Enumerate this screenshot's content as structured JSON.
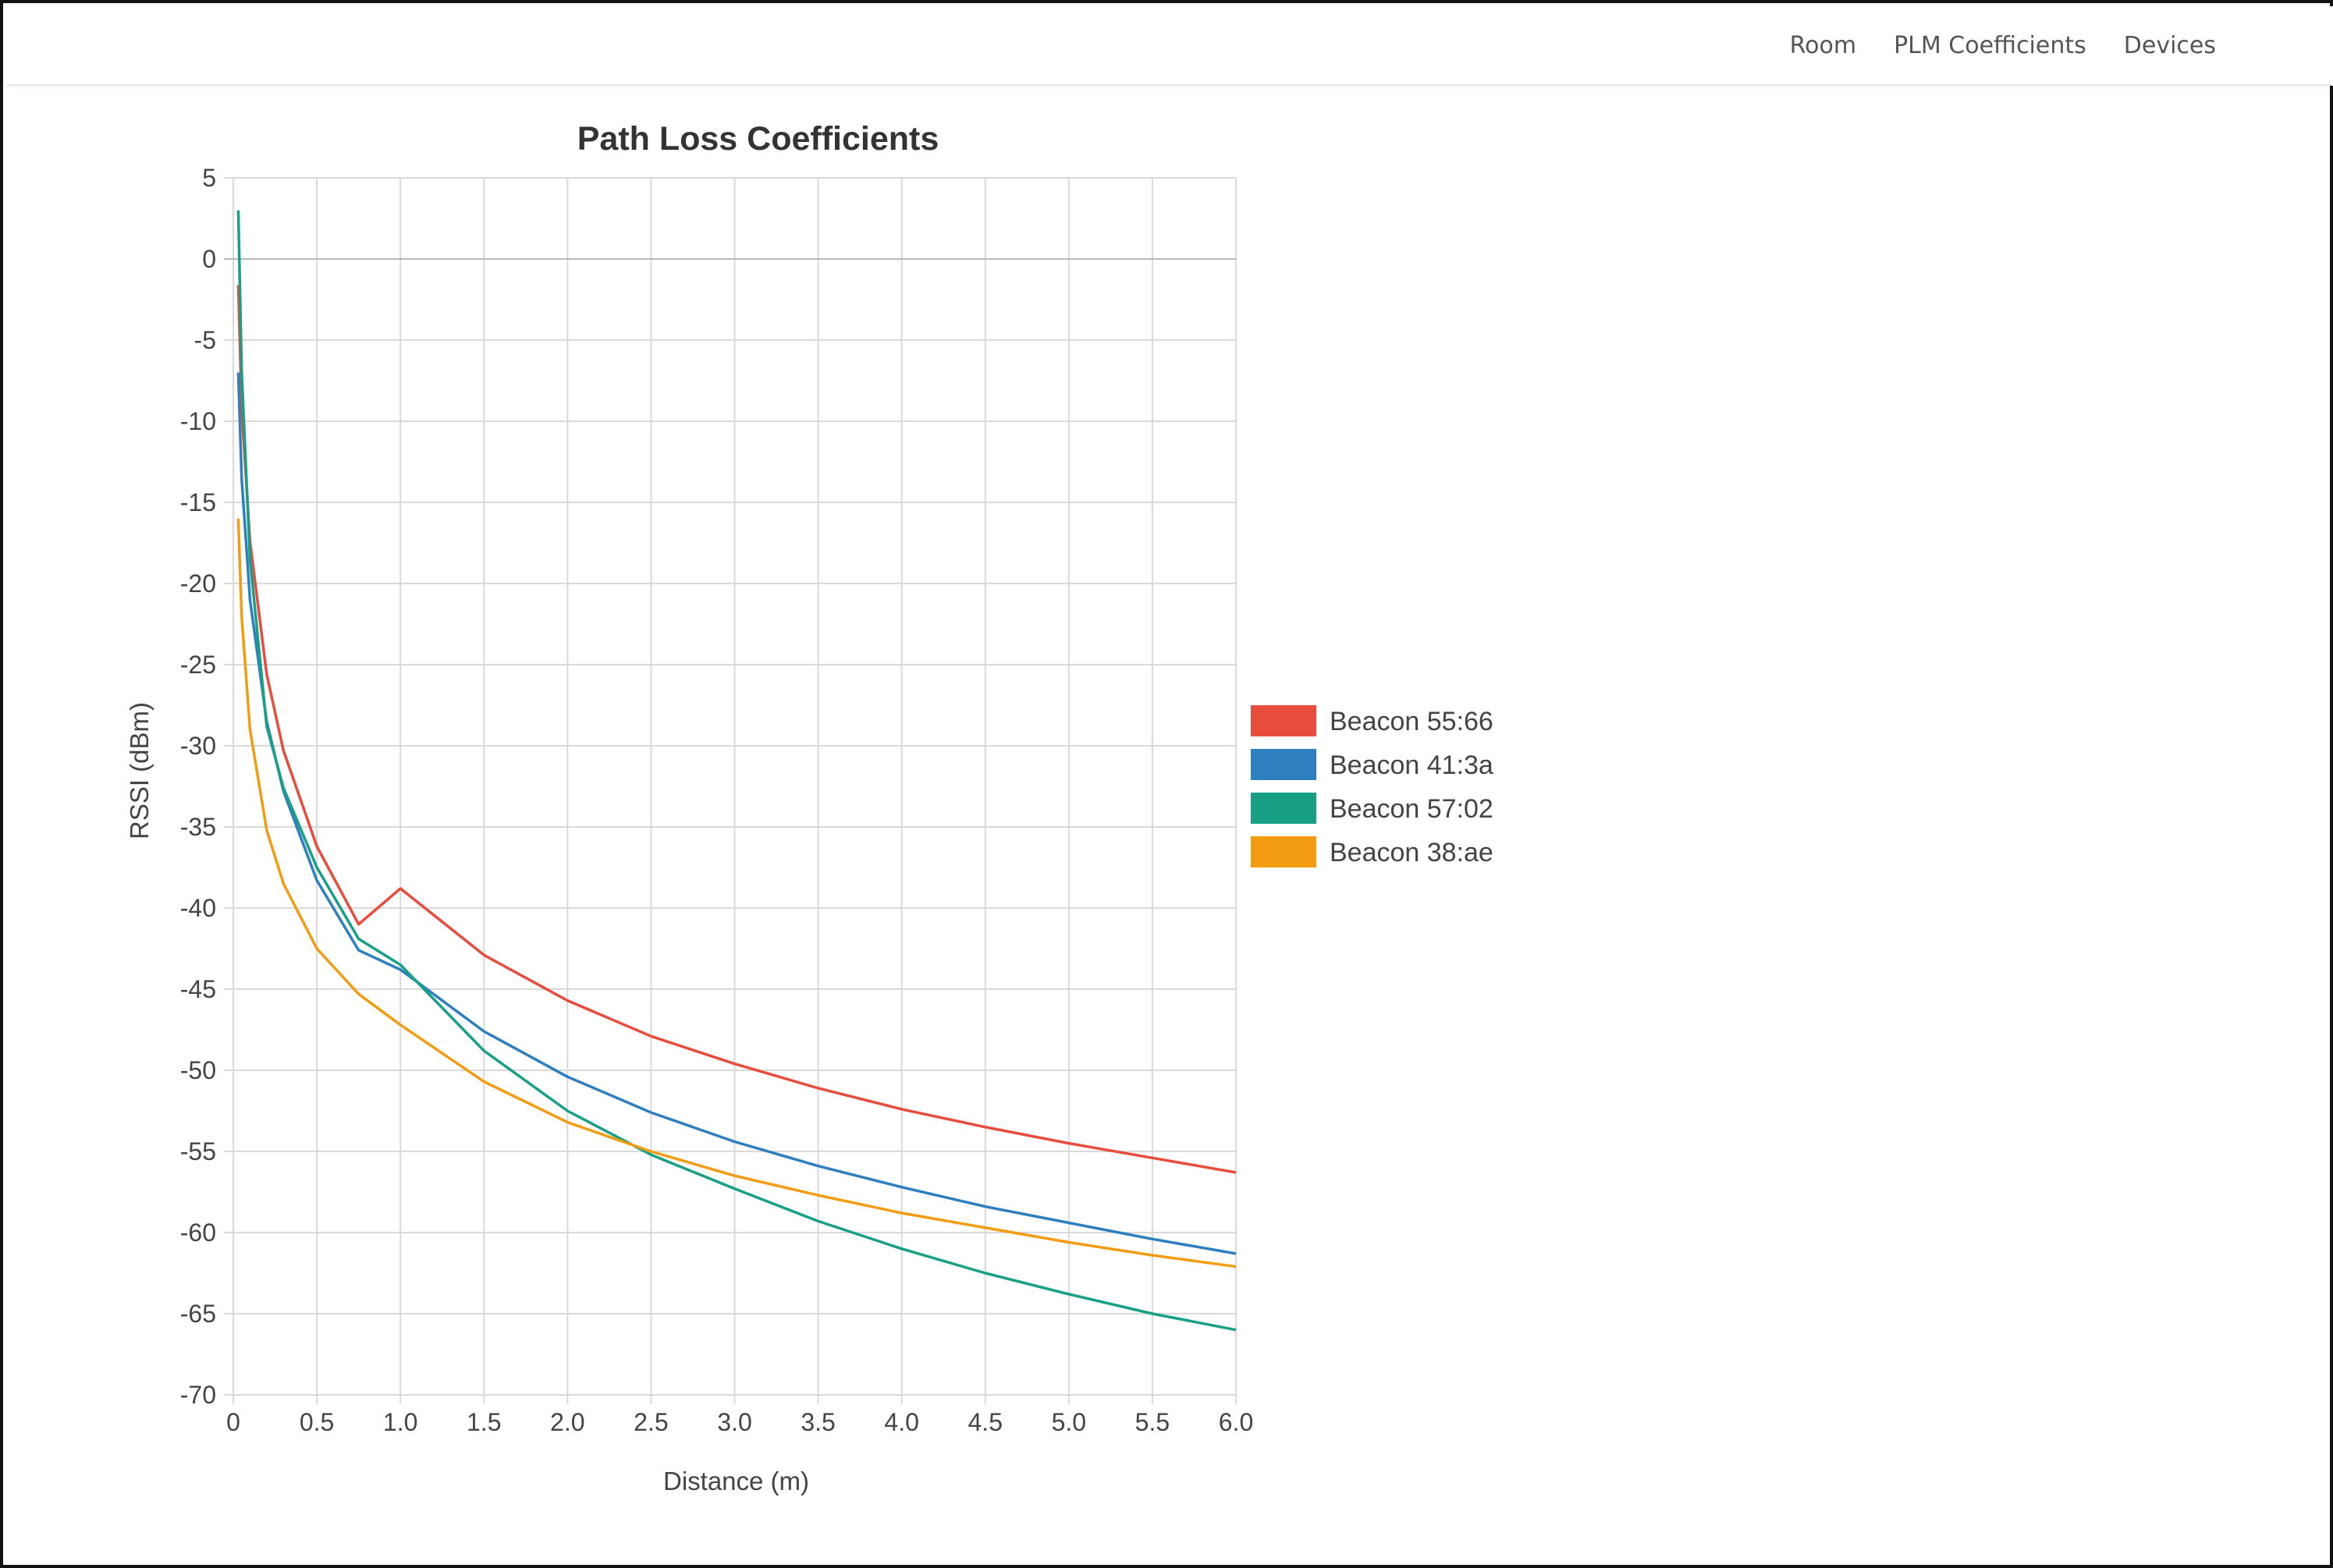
{
  "nav": {
    "items": [
      {
        "label": "Room"
      },
      {
        "label": "PLM Coefficients"
      },
      {
        "label": "Devices"
      }
    ]
  },
  "chart_data": {
    "type": "line",
    "title": "Path Loss Coefficients",
    "xlabel": "Distance (m)",
    "ylabel": "RSSI (dBm)",
    "xlim": [
      0,
      6.0
    ],
    "ylim": [
      -70,
      5
    ],
    "xticks": [
      0,
      0.5,
      1.0,
      1.5,
      2.0,
      2.5,
      3.0,
      3.5,
      4.0,
      4.5,
      5.0,
      5.5,
      6.0
    ],
    "xtick_labels": [
      "0",
      "0.5",
      "1.0",
      "1.5",
      "2.0",
      "2.5",
      "3.0",
      "3.5",
      "4.0",
      "4.5",
      "5.0",
      "5.5",
      "6.0"
    ],
    "yticks": [
      5,
      0,
      -5,
      -10,
      -15,
      -20,
      -25,
      -30,
      -35,
      -40,
      -45,
      -50,
      -55,
      -60,
      -65,
      -70
    ],
    "ytick_labels": [
      "5",
      "0",
      "-5",
      "-10",
      "-15",
      "-20",
      "-25",
      "-30",
      "-35",
      "-40",
      "-45",
      "-50",
      "-55",
      "-60",
      "-65",
      "-70"
    ],
    "grid": true,
    "legend_position": "right",
    "series": [
      {
        "name": "Beacon 55:66",
        "color": "#e74c3c",
        "x": [
          0.03,
          0.05,
          0.1,
          0.2,
          0.3,
          0.5,
          0.75,
          1.0,
          1.5,
          2.0,
          2.5,
          3.0,
          3.5,
          4.0,
          4.5,
          5.0,
          5.5,
          6.0
        ],
        "y": [
          -1.6,
          -9.2,
          -17.4,
          -25.6,
          -30.3,
          -36.2,
          -41.0,
          -38.8,
          -42.9,
          -45.7,
          -47.9,
          -49.6,
          -51.1,
          -52.4,
          -53.5,
          -54.5,
          -55.4,
          -56.3
        ]
      },
      {
        "name": "Beacon 41:3a",
        "color": "#2e7fc0",
        "x": [
          0.03,
          0.05,
          0.1,
          0.2,
          0.3,
          0.5,
          0.75,
          1.0,
          1.5,
          2.0,
          2.5,
          3.0,
          3.5,
          4.0,
          4.5,
          5.0,
          5.5,
          6.0
        ],
        "y": [
          -7.0,
          -13.5,
          -21.0,
          -28.5,
          -32.8,
          -38.3,
          -42.6,
          -43.8,
          -47.6,
          -50.4,
          -52.6,
          -54.4,
          -55.9,
          -57.2,
          -58.4,
          -59.4,
          -60.4,
          -61.3
        ]
      },
      {
        "name": "Beacon 57:02",
        "color": "#17a085",
        "x": [
          0.03,
          0.05,
          0.1,
          0.2,
          0.3,
          0.5,
          0.75,
          1.0,
          1.5,
          2.0,
          2.5,
          3.0,
          3.5,
          4.0,
          4.5,
          5.0,
          5.5,
          6.0
        ],
        "y": [
          3.0,
          -6.9,
          -18.5,
          -28.8,
          -32.6,
          -37.5,
          -41.9,
          -43.5,
          -48.8,
          -52.5,
          -55.2,
          -57.3,
          -59.3,
          -61.0,
          -62.5,
          -63.8,
          -65.0,
          -66.0
        ]
      },
      {
        "name": "Beacon 38:ae",
        "color": "#f39c12",
        "x": [
          0.03,
          0.05,
          0.1,
          0.2,
          0.3,
          0.5,
          0.75,
          1.0,
          1.5,
          2.0,
          2.5,
          3.0,
          3.5,
          4.0,
          4.5,
          5.0,
          5.5,
          6.0
        ],
        "y": [
          -16.0,
          -22.0,
          -29.0,
          -35.2,
          -38.5,
          -42.5,
          -45.3,
          -47.2,
          -50.7,
          -53.2,
          -55.0,
          -56.5,
          -57.7,
          -58.8,
          -59.7,
          -60.6,
          -61.4,
          -62.1
        ]
      }
    ]
  }
}
